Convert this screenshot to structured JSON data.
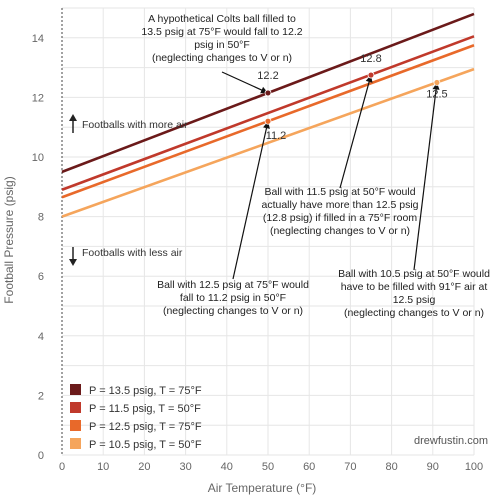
{
  "chart_data": {
    "type": "line",
    "title": "",
    "xlabel": "Air Temperature (°F)",
    "ylabel": "Football Pressure (psig)",
    "xlim": [
      0,
      100
    ],
    "ylim": [
      0,
      15
    ],
    "xticks": [
      0,
      10,
      20,
      30,
      40,
      50,
      60,
      70,
      80,
      90,
      100
    ],
    "yticks": [
      0,
      2,
      4,
      6,
      8,
      10,
      12,
      14
    ],
    "grid": true,
    "legend_position": "bottom-left",
    "series": [
      {
        "name": "P = 13.5 psig, T = 75°F",
        "color": "#6b1a1a",
        "x": [
          0,
          100
        ],
        "y": [
          9.5,
          14.8
        ]
      },
      {
        "name": "P = 11.5 psig, T = 50°F",
        "color": "#c0392b",
        "x": [
          0,
          100
        ],
        "y": [
          8.9,
          14.05
        ]
      },
      {
        "name": "P = 12.5 psig, T = 75°F",
        "color": "#e8692a",
        "x": [
          0,
          100
        ],
        "y": [
          8.65,
          13.75
        ]
      },
      {
        "name": "P = 10.5 psig, T = 50°F",
        "color": "#f5a55c",
        "x": [
          0,
          100
        ],
        "y": [
          8.0,
          12.95
        ]
      }
    ],
    "points": [
      {
        "series": 0,
        "x": 50,
        "y": 12.15,
        "label": "12.2"
      },
      {
        "series": 1,
        "x": 75,
        "y": 12.75,
        "label": "12.8"
      },
      {
        "series": 2,
        "x": 50,
        "y": 11.2,
        "label": "11.2"
      },
      {
        "series": 3,
        "x": 91,
        "y": 12.5,
        "label": "12.5"
      }
    ],
    "annotations": [
      {
        "lines": [
          "A hypothetical Colts ball filled to",
          "13.5 psig at 75°F would fall to 12.2",
          "psig in 50°F",
          "(neglecting changes to V or n)"
        ],
        "target": {
          "x": 50,
          "y": 12.15
        }
      },
      {
        "lines": [
          "Ball with 11.5 psig at 50°F would",
          "actually have more than 12.5 psig",
          "(12.8 psig) if filled in a 75°F room",
          "(neglecting changes to V or n)"
        ],
        "target": {
          "x": 75,
          "y": 12.75
        }
      },
      {
        "lines": [
          "Ball with 12.5 psig at 75°F would",
          "fall to 11.2 psig in 50°F",
          "(neglecting changes to V or n)"
        ],
        "target": {
          "x": 50,
          "y": 11.2
        }
      },
      {
        "lines": [
          "Ball with 10.5 psig at 50°F would",
          "have to be filled with 91°F air at",
          "12.5 psig",
          "(neglecting changes to V or n)"
        ],
        "target": {
          "x": 91,
          "y": 12.5
        }
      }
    ],
    "side_labels": {
      "more_air": "Footballs with more air",
      "less_air": "Footballs with less air"
    },
    "credit": "drewfustin.com"
  }
}
